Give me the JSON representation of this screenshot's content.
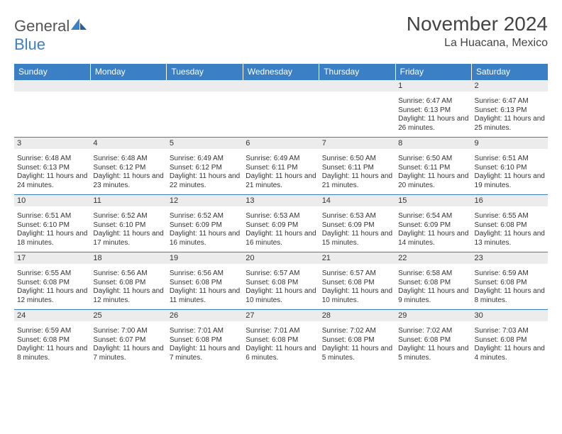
{
  "header": {
    "logo_general": "General",
    "logo_blue": "Blue",
    "month_title": "November 2024",
    "location": "La Huacana, Mexico"
  },
  "colors": {
    "accent": "#3b7fc4",
    "header_bg": "#3b7fc4",
    "header_text": "#ffffff",
    "daynum_bg": "#ececec",
    "border": "#3b7fc4",
    "text": "#333333"
  },
  "day_names": [
    "Sunday",
    "Monday",
    "Tuesday",
    "Wednesday",
    "Thursday",
    "Friday",
    "Saturday"
  ],
  "weeks": [
    [
      {
        "n": "",
        "sunrise": "",
        "sunset": "",
        "daylight": ""
      },
      {
        "n": "",
        "sunrise": "",
        "sunset": "",
        "daylight": ""
      },
      {
        "n": "",
        "sunrise": "",
        "sunset": "",
        "daylight": ""
      },
      {
        "n": "",
        "sunrise": "",
        "sunset": "",
        "daylight": ""
      },
      {
        "n": "",
        "sunrise": "",
        "sunset": "",
        "daylight": ""
      },
      {
        "n": "1",
        "sunrise": "Sunrise: 6:47 AM",
        "sunset": "Sunset: 6:13 PM",
        "daylight": "Daylight: 11 hours and 26 minutes."
      },
      {
        "n": "2",
        "sunrise": "Sunrise: 6:47 AM",
        "sunset": "Sunset: 6:13 PM",
        "daylight": "Daylight: 11 hours and 25 minutes."
      }
    ],
    [
      {
        "n": "3",
        "sunrise": "Sunrise: 6:48 AM",
        "sunset": "Sunset: 6:13 PM",
        "daylight": "Daylight: 11 hours and 24 minutes."
      },
      {
        "n": "4",
        "sunrise": "Sunrise: 6:48 AM",
        "sunset": "Sunset: 6:12 PM",
        "daylight": "Daylight: 11 hours and 23 minutes."
      },
      {
        "n": "5",
        "sunrise": "Sunrise: 6:49 AM",
        "sunset": "Sunset: 6:12 PM",
        "daylight": "Daylight: 11 hours and 22 minutes."
      },
      {
        "n": "6",
        "sunrise": "Sunrise: 6:49 AM",
        "sunset": "Sunset: 6:11 PM",
        "daylight": "Daylight: 11 hours and 21 minutes."
      },
      {
        "n": "7",
        "sunrise": "Sunrise: 6:50 AM",
        "sunset": "Sunset: 6:11 PM",
        "daylight": "Daylight: 11 hours and 21 minutes."
      },
      {
        "n": "8",
        "sunrise": "Sunrise: 6:50 AM",
        "sunset": "Sunset: 6:11 PM",
        "daylight": "Daylight: 11 hours and 20 minutes."
      },
      {
        "n": "9",
        "sunrise": "Sunrise: 6:51 AM",
        "sunset": "Sunset: 6:10 PM",
        "daylight": "Daylight: 11 hours and 19 minutes."
      }
    ],
    [
      {
        "n": "10",
        "sunrise": "Sunrise: 6:51 AM",
        "sunset": "Sunset: 6:10 PM",
        "daylight": "Daylight: 11 hours and 18 minutes."
      },
      {
        "n": "11",
        "sunrise": "Sunrise: 6:52 AM",
        "sunset": "Sunset: 6:10 PM",
        "daylight": "Daylight: 11 hours and 17 minutes."
      },
      {
        "n": "12",
        "sunrise": "Sunrise: 6:52 AM",
        "sunset": "Sunset: 6:09 PM",
        "daylight": "Daylight: 11 hours and 16 minutes."
      },
      {
        "n": "13",
        "sunrise": "Sunrise: 6:53 AM",
        "sunset": "Sunset: 6:09 PM",
        "daylight": "Daylight: 11 hours and 16 minutes."
      },
      {
        "n": "14",
        "sunrise": "Sunrise: 6:53 AM",
        "sunset": "Sunset: 6:09 PM",
        "daylight": "Daylight: 11 hours and 15 minutes."
      },
      {
        "n": "15",
        "sunrise": "Sunrise: 6:54 AM",
        "sunset": "Sunset: 6:09 PM",
        "daylight": "Daylight: 11 hours and 14 minutes."
      },
      {
        "n": "16",
        "sunrise": "Sunrise: 6:55 AM",
        "sunset": "Sunset: 6:08 PM",
        "daylight": "Daylight: 11 hours and 13 minutes."
      }
    ],
    [
      {
        "n": "17",
        "sunrise": "Sunrise: 6:55 AM",
        "sunset": "Sunset: 6:08 PM",
        "daylight": "Daylight: 11 hours and 12 minutes."
      },
      {
        "n": "18",
        "sunrise": "Sunrise: 6:56 AM",
        "sunset": "Sunset: 6:08 PM",
        "daylight": "Daylight: 11 hours and 12 minutes."
      },
      {
        "n": "19",
        "sunrise": "Sunrise: 6:56 AM",
        "sunset": "Sunset: 6:08 PM",
        "daylight": "Daylight: 11 hours and 11 minutes."
      },
      {
        "n": "20",
        "sunrise": "Sunrise: 6:57 AM",
        "sunset": "Sunset: 6:08 PM",
        "daylight": "Daylight: 11 hours and 10 minutes."
      },
      {
        "n": "21",
        "sunrise": "Sunrise: 6:57 AM",
        "sunset": "Sunset: 6:08 PM",
        "daylight": "Daylight: 11 hours and 10 minutes."
      },
      {
        "n": "22",
        "sunrise": "Sunrise: 6:58 AM",
        "sunset": "Sunset: 6:08 PM",
        "daylight": "Daylight: 11 hours and 9 minutes."
      },
      {
        "n": "23",
        "sunrise": "Sunrise: 6:59 AM",
        "sunset": "Sunset: 6:08 PM",
        "daylight": "Daylight: 11 hours and 8 minutes."
      }
    ],
    [
      {
        "n": "24",
        "sunrise": "Sunrise: 6:59 AM",
        "sunset": "Sunset: 6:08 PM",
        "daylight": "Daylight: 11 hours and 8 minutes."
      },
      {
        "n": "25",
        "sunrise": "Sunrise: 7:00 AM",
        "sunset": "Sunset: 6:07 PM",
        "daylight": "Daylight: 11 hours and 7 minutes."
      },
      {
        "n": "26",
        "sunrise": "Sunrise: 7:01 AM",
        "sunset": "Sunset: 6:08 PM",
        "daylight": "Daylight: 11 hours and 7 minutes."
      },
      {
        "n": "27",
        "sunrise": "Sunrise: 7:01 AM",
        "sunset": "Sunset: 6:08 PM",
        "daylight": "Daylight: 11 hours and 6 minutes."
      },
      {
        "n": "28",
        "sunrise": "Sunrise: 7:02 AM",
        "sunset": "Sunset: 6:08 PM",
        "daylight": "Daylight: 11 hours and 5 minutes."
      },
      {
        "n": "29",
        "sunrise": "Sunrise: 7:02 AM",
        "sunset": "Sunset: 6:08 PM",
        "daylight": "Daylight: 11 hours and 5 minutes."
      },
      {
        "n": "30",
        "sunrise": "Sunrise: 7:03 AM",
        "sunset": "Sunset: 6:08 PM",
        "daylight": "Daylight: 11 hours and 4 minutes."
      }
    ]
  ]
}
